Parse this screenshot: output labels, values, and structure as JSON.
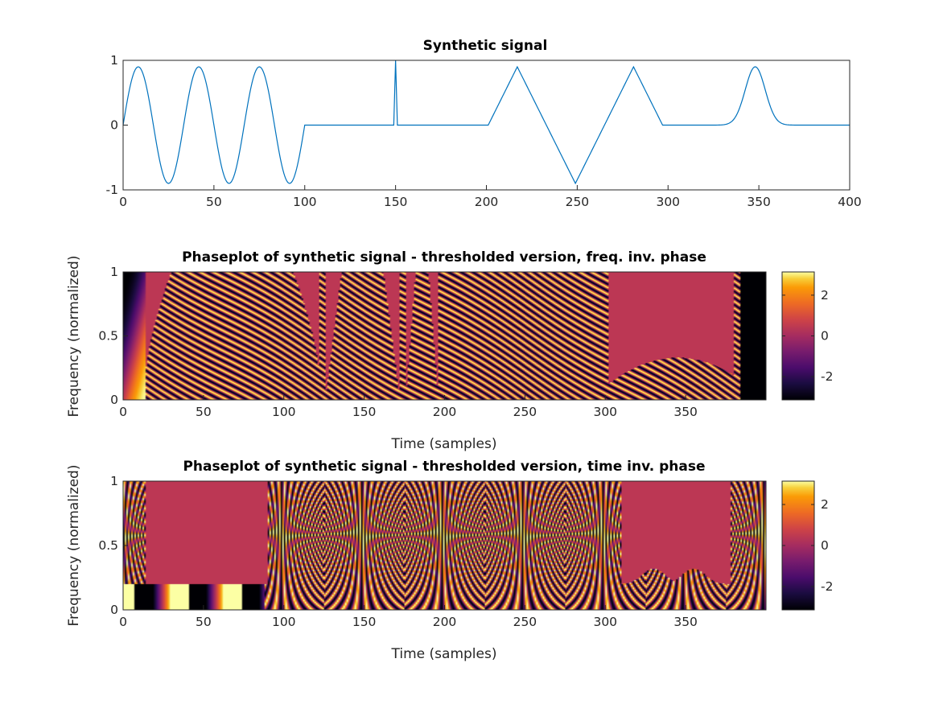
{
  "chart_data": [
    {
      "type": "line",
      "title": "Synthetic signal",
      "xlabel": "",
      "ylabel": "",
      "xlim": [
        0,
        400
      ],
      "ylim": [
        -1,
        1
      ],
      "xticks": [
        "0",
        "50",
        "100",
        "150",
        "200",
        "250",
        "300",
        "350",
        "400"
      ],
      "yticks": [
        "-1",
        "0",
        "1"
      ],
      "grid": false,
      "color": "#0072BD",
      "segments": [
        {
          "kind": "sine",
          "x": [
            0,
            100
          ],
          "periods": 3,
          "amplitude": 0.9
        },
        {
          "kind": "flat",
          "x": [
            100,
            149
          ],
          "y": 0
        },
        {
          "kind": "spike",
          "x": 150,
          "y": 1
        },
        {
          "kind": "flat",
          "x": [
            152,
            201
          ],
          "y": 0
        },
        {
          "kind": "triangle",
          "x": [
            201,
            217,
            249,
            281,
            297
          ],
          "y": [
            0,
            0.9,
            -0.9,
            0.9,
            0
          ]
        },
        {
          "kind": "flat",
          "x": [
            297,
            330
          ],
          "y": 0
        },
        {
          "kind": "gaussian",
          "center": 348,
          "width": 5.5,
          "amplitude": 0.9
        },
        {
          "kind": "flat",
          "x": [
            366,
            400
          ],
          "y": 0
        }
      ]
    },
    {
      "type": "heatmap",
      "title": "Phaseplot of synthetic signal - thresholded version, freq. inv. phase",
      "xlabel": "Time (samples)",
      "ylabel": "Frequency (normalized)",
      "xlim": [
        0,
        400
      ],
      "ylim": [
        0,
        1
      ],
      "xticks": [
        "0",
        "50",
        "100",
        "150",
        "200",
        "250",
        "300",
        "350"
      ],
      "yticks": [
        "0",
        "0.5",
        "1"
      ],
      "colormap": "inferno",
      "clim": [
        -3.14,
        3.14
      ],
      "colorbar_ticks": [
        "2",
        "0",
        "-2"
      ],
      "threshold_color": "#BC3754"
    },
    {
      "type": "heatmap",
      "title": "Phaseplot of synthetic signal - thresholded version, time inv. phase",
      "xlabel": "Time (samples)",
      "ylabel": "Frequency (normalized)",
      "xlim": [
        0,
        400
      ],
      "ylim": [
        0,
        1
      ],
      "xticks": [
        "0",
        "50",
        "100",
        "150",
        "200",
        "250",
        "300",
        "350"
      ],
      "yticks": [
        "0",
        "0.5",
        "1"
      ],
      "colormap": "inferno",
      "clim": [
        -3.14,
        3.14
      ],
      "colorbar_ticks": [
        "2",
        "0",
        "-2"
      ],
      "threshold_color": "#BC3754"
    }
  ]
}
